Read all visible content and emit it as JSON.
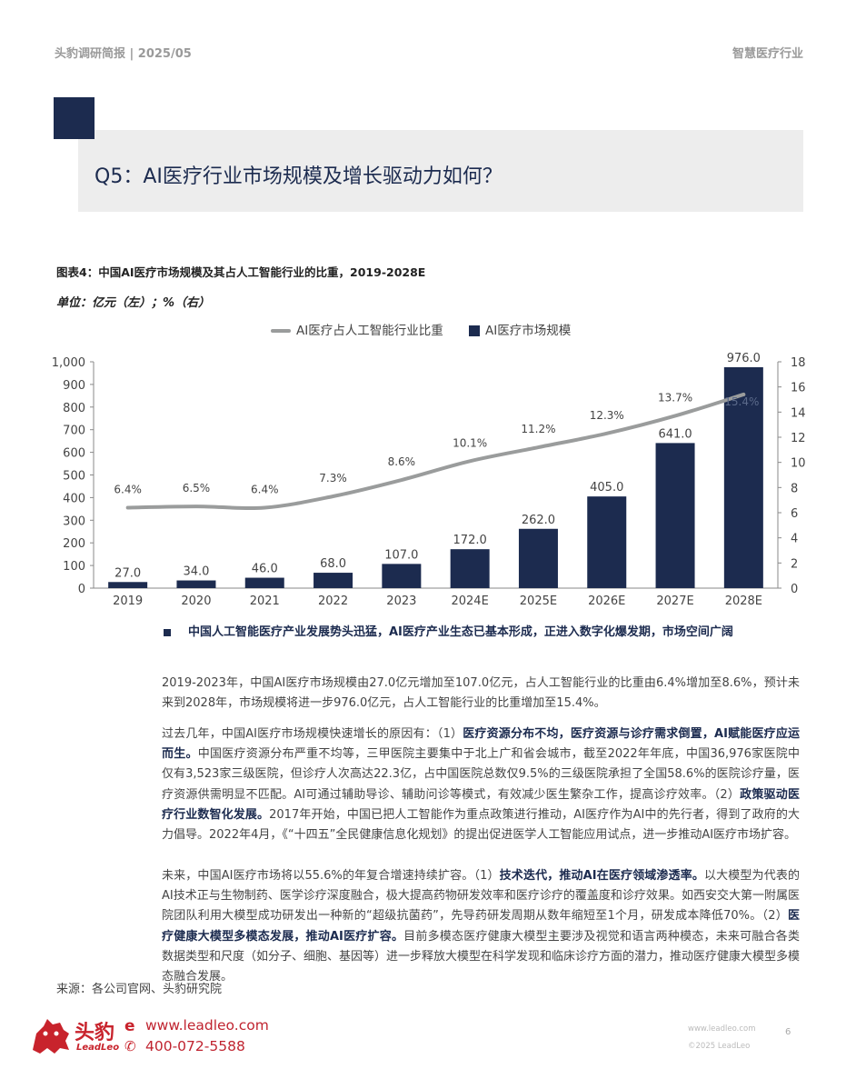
{
  "header": {
    "left": "头豹调研简报 | 2025/05",
    "right": "智慧医疗行业"
  },
  "question": "Q5：AI医疗行业市场规模及增长驱动力如何？",
  "figure": {
    "title": "图表4：中国AI医疗市场规模及其占人工智能行业的比重，2019-2028E",
    "unit": "单位：亿元（左）；%（右）"
  },
  "chart_data": {
    "type": "bar",
    "categories": [
      "2019",
      "2020",
      "2021",
      "2022",
      "2023",
      "2024E",
      "2025E",
      "2026E",
      "2027E",
      "2028E"
    ],
    "series": [
      {
        "name": "AI医疗市场规模",
        "type": "bar",
        "axis": "left",
        "values": [
          27.0,
          34.0,
          46.0,
          68.0,
          107.0,
          172.0,
          262.0,
          405.0,
          641.0,
          976.0
        ],
        "labels": [
          "27.0",
          "34.0",
          "46.0",
          "68.0",
          "107.0",
          "172.0",
          "262.0",
          "405.0",
          "641.0",
          "976.0"
        ],
        "color": "#1c2b4f"
      },
      {
        "name": "AI医疗占人工智能行业比重",
        "type": "line",
        "axis": "right",
        "values": [
          6.4,
          6.5,
          6.4,
          7.3,
          8.6,
          10.1,
          11.2,
          12.3,
          13.7,
          15.4
        ],
        "labels": [
          "6.4%",
          "6.5%",
          "6.4%",
          "7.3%",
          "8.6%",
          "10.1%",
          "11.2%",
          "12.3%",
          "13.7%",
          "15.4%"
        ],
        "color": "#9a9c9c"
      }
    ],
    "ylim_left": [
      0,
      1000
    ],
    "yticks_left": [
      "0",
      "100",
      "200",
      "300",
      "400",
      "500",
      "600",
      "700",
      "800",
      "900",
      "1,000"
    ],
    "ylim_right": [
      0,
      18
    ],
    "yticks_right": [
      "0",
      "2",
      "4",
      "6",
      "8",
      "10",
      "12",
      "14",
      "16",
      "18"
    ],
    "legend_position": "top-center",
    "grid": false
  },
  "bullet_title": "中国人工智能医疗产业发展势头迅猛，AI医疗产业生态已基本形成，正进入数字化爆发期，市场空间广阔",
  "paragraphs": {
    "p1": "2019-2023年，中国AI医疗市场规模由27.0亿元增加至107.0亿元，占人工智能行业的比重由6.4%增加至8.6%，预计未来到2028年，市场规模将进一步976.0亿元，占人工智能行业的比重增加至15.4%。",
    "p2_a": "过去几年，中国AI医疗市场规模快速增长的原因有：（1）",
    "p2_b": "医疗资源分布不均，医疗资源与诊疗需求倒置，AI赋能医疗应运而生。",
    "p2_c": "中国医疗资源分布严重不均等，三甲医院主要集中于北上广和省会城市，截至2022年年底，中国36,976家医院中仅有3,523家三级医院，但诊疗人次高达22.3亿，占中国医院总数仅9.5%的三级医院承担了全国58.6%的医院诊疗量，医疗资源供需明显不匹配。AI可通过辅助导诊、辅助问诊等模式，有效减少医生繁杂工作，提高诊疗效率。（2）",
    "p2_d": "政策驱动医疗行业数智化发展。",
    "p2_e": "2017年开始，中国已把人工智能作为重点政策进行推动，AI医疗作为AI中的先行者，得到了政府的大力倡导。2022年4月，《“十四五”全民健康信息化规划》的提出促进医学人工智能应用试点，进一步推动AI医疗市场扩容。",
    "p3_a": "未来，中国AI医疗市场将以55.6%的年复合增速持续扩容。（1）",
    "p3_b": "技术迭代，推动AI在医疗领域渗透率。",
    "p3_c": "以大模型为代表的AI技术正与生物制药、医学诊疗深度融合，极大提高药物研发效率和医疗诊疗的覆盖度和诊疗效果。如西安交大第一附属医院团队利用大模型成功研发出一种新的“超级抗菌药”，先导药研发周期从数年缩短至1个月，研发成本降低70%。（2）",
    "p3_d": "医疗健康大模型多模态发展，推动AI医疗扩容。",
    "p3_e": "目前多模态医疗健康大模型主要涉及视觉和语言两种模态，未来可融合各类数据类型和尺度（如分子、细胞、基因等）进一步释放大模型在科学发现和临床诊疗方面的潜力，推动医疗健康大模型多模态融合发展。"
  },
  "source": "来源：各公司官网、头豹研究院",
  "footer": {
    "logo_cn": "头豹",
    "logo_en": "LeadLeo",
    "url": "www.leadleo.com",
    "phone": "400-072-5588",
    "small_url": "www.leadleo.com",
    "copyright": "©2025 LeadLeo",
    "page": "6"
  }
}
